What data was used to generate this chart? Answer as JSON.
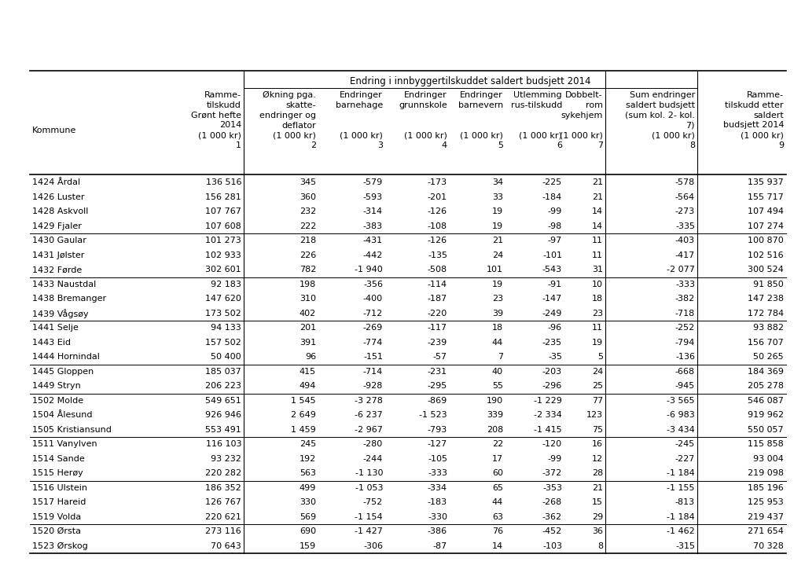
{
  "title": "Endring i innbyggertilskuddet saldert budsjett 2014",
  "background_color": "#ffffff",
  "text_color": "#000000",
  "rows": [
    [
      "1424 Årdal",
      "136 516",
      "345",
      "-579",
      "-173",
      "34",
      "-225",
      "21",
      "-578",
      "135 937"
    ],
    [
      "1426 Luster",
      "156 281",
      "360",
      "-593",
      "-201",
      "33",
      "-184",
      "21",
      "-564",
      "155 717"
    ],
    [
      "1428 Askvoll",
      "107 767",
      "232",
      "-314",
      "-126",
      "19",
      "-99",
      "14",
      "-273",
      "107 494"
    ],
    [
      "1429 Fjaler",
      "107 608",
      "222",
      "-383",
      "-108",
      "19",
      "-98",
      "14",
      "-335",
      "107 274"
    ],
    [
      "1430 Gaular",
      "101 273",
      "218",
      "-431",
      "-126",
      "21",
      "-97",
      "11",
      "-403",
      "100 870"
    ],
    [
      "1431 Jølster",
      "102 933",
      "226",
      "-442",
      "-135",
      "24",
      "-101",
      "11",
      "-417",
      "102 516"
    ],
    [
      "1432 Førde",
      "302 601",
      "782",
      "-1 940",
      "-508",
      "101",
      "-543",
      "31",
      "-2 077",
      "300 524"
    ],
    [
      "1433 Naustdal",
      "92 183",
      "198",
      "-356",
      "-114",
      "19",
      "-91",
      "10",
      "-333",
      "91 850"
    ],
    [
      "1438 Bremanger",
      "147 620",
      "310",
      "-400",
      "-187",
      "23",
      "-147",
      "18",
      "-382",
      "147 238"
    ],
    [
      "1439 Vågsøy",
      "173 502",
      "402",
      "-712",
      "-220",
      "39",
      "-249",
      "23",
      "-718",
      "172 784"
    ],
    [
      "1441 Selje",
      "94 133",
      "201",
      "-269",
      "-117",
      "18",
      "-96",
      "11",
      "-252",
      "93 882"
    ],
    [
      "1443 Eid",
      "157 502",
      "391",
      "-774",
      "-239",
      "44",
      "-235",
      "19",
      "-794",
      "156 707"
    ],
    [
      "1444 Hornindal",
      "50 400",
      "96",
      "-151",
      "-57",
      "7",
      "-35",
      "5",
      "-136",
      "50 265"
    ],
    [
      "1445 Gloppen",
      "185 037",
      "415",
      "-714",
      "-231",
      "40",
      "-203",
      "24",
      "-668",
      "184 369"
    ],
    [
      "1449 Stryn",
      "206 223",
      "494",
      "-928",
      "-295",
      "55",
      "-296",
      "25",
      "-945",
      "205 278"
    ],
    [
      "1502 Molde",
      "549 651",
      "1 545",
      "-3 278",
      "-869",
      "190",
      "-1 229",
      "77",
      "-3 565",
      "546 087"
    ],
    [
      "1504 Ålesund",
      "926 946",
      "2 649",
      "-6 237",
      "-1 523",
      "339",
      "-2 334",
      "123",
      "-6 983",
      "919 962"
    ],
    [
      "1505 Kristiansund",
      "553 491",
      "1 459",
      "-2 967",
      "-793",
      "208",
      "-1 415",
      "75",
      "-3 434",
      "550 057"
    ],
    [
      "1511 Vanylven",
      "116 103",
      "245",
      "-280",
      "-127",
      "22",
      "-120",
      "16",
      "-245",
      "115 858"
    ],
    [
      "1514 Sande",
      "93 232",
      "192",
      "-244",
      "-105",
      "17",
      "-99",
      "12",
      "-227",
      "93 004"
    ],
    [
      "1515 Herøy",
      "220 282",
      "563",
      "-1 130",
      "-333",
      "60",
      "-372",
      "28",
      "-1 184",
      "219 098"
    ],
    [
      "1516 Ulstein",
      "186 352",
      "499",
      "-1 053",
      "-334",
      "65",
      "-353",
      "21",
      "-1 155",
      "185 196"
    ],
    [
      "1517 Hareid",
      "126 767",
      "330",
      "-752",
      "-183",
      "44",
      "-268",
      "15",
      "-813",
      "125 953"
    ],
    [
      "1519 Volda",
      "220 621",
      "569",
      "-1 154",
      "-330",
      "63",
      "-362",
      "29",
      "-1 184",
      "219 437"
    ],
    [
      "1520 Ørsta",
      "273 116",
      "690",
      "-1 427",
      "-386",
      "76",
      "-452",
      "36",
      "-1 462",
      "271 654"
    ],
    [
      "1523 Ørskog",
      "70 643",
      "159",
      "-306",
      "-87",
      "14",
      "-103",
      "8",
      "-315",
      "70 328"
    ]
  ],
  "group_separators_before": [
    4,
    7,
    10,
    13,
    15,
    18,
    21,
    24
  ],
  "col_header_line1": [
    "Kommune",
    "Ramme-\ntilskudd\nGrønt hefte\n2014\n(1 000 kr)\n1",
    "Økning pga.\nskatte-\nendringer og\ndeflator\n(1 000 kr)\n2",
    "Endringer\nbarnehage\n\n\n(1 000 kr)\n3",
    "Endringer\ngrunnskole\n\n\n(1 000 kr)\n4",
    "Endringer\nbarnevern\n\n\n(1 000 kr)\n5",
    "Utlemming\nrus-tilskudd\n\n\n(1 000 kr)\n6",
    "Dobbelt-\nrom\nsykehjem\n\n(1 000 kr)\n7",
    "Sum endringer\nsaldert budsjett\n(sum kol. 2- kol.\n7)\n(1 000 kr)\n8",
    "Ramme-\ntilskudd etter\nsaldert\nbudsjett 2014\n(1 000 kr)\n9"
  ]
}
